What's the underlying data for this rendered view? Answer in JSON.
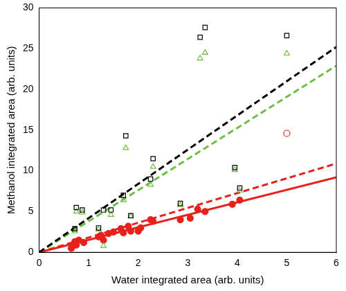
{
  "chart_data": {
    "type": "scatter",
    "x_label": "Water integrated area (arb. units)",
    "y_label": "Methanol integrated area (arb. units)",
    "xlim": [
      0,
      6
    ],
    "xticks": [
      0,
      1,
      2,
      3,
      4,
      5,
      6
    ],
    "ylim": [
      0,
      30
    ],
    "yticks": [
      0,
      5,
      10,
      15,
      20,
      25,
      30
    ],
    "grid": false,
    "series": [
      {
        "type": "line",
        "color": "#000000",
        "line_style": "dashed",
        "x": [
          0,
          6
        ],
        "values": [
          0,
          25.2
        ]
      },
      {
        "type": "line",
        "color": "#6cbf45",
        "line_style": "dashed",
        "x": [
          0,
          6
        ],
        "values": [
          0,
          22.9
        ]
      },
      {
        "type": "line",
        "color": "#e8201c",
        "line_style": "dashed",
        "x": [
          0,
          6
        ],
        "values": [
          0,
          10.9
        ]
      },
      {
        "type": "line",
        "color": "#e8201c",
        "line_style": "solid",
        "x": [
          0,
          6
        ],
        "values": [
          0,
          9.2
        ]
      },
      {
        "type": "scatter",
        "color": "#000000",
        "marker": "square_open",
        "x": [
          0.72,
          0.75,
          0.87,
          1.2,
          1.3,
          1.45,
          1.7,
          1.75,
          1.85,
          2.25,
          2.3,
          2.85,
          3.25,
          3.35,
          3.95,
          4.05,
          5.0
        ],
        "values": [
          2.9,
          5.5,
          5.2,
          3.0,
          5.2,
          5.2,
          7.0,
          14.3,
          4.5,
          9.0,
          11.5,
          6.0,
          26.4,
          27.6,
          10.4,
          7.9,
          26.6
        ]
      },
      {
        "type": "scatter",
        "color": "#6cbf45",
        "marker": "triangle_open",
        "x": [
          0.72,
          0.75,
          0.87,
          1.2,
          1.3,
          1.45,
          1.7,
          1.75,
          1.85,
          2.25,
          2.3,
          2.85,
          3.25,
          3.35,
          3.95,
          4.05,
          5.0
        ],
        "values": [
          2.6,
          5.0,
          4.9,
          2.8,
          0.8,
          4.6,
          6.4,
          12.8,
          4.4,
          8.3,
          10.5,
          5.8,
          23.8,
          24.5,
          10.1,
          7.6,
          24.4
        ]
      },
      {
        "type": "scatter",
        "color": "#e8201c",
        "marker": "circle",
        "x": [
          0.65,
          0.68,
          0.7,
          0.72,
          0.75,
          0.8,
          0.9,
          1.2,
          1.25,
          1.3,
          1.4,
          1.5,
          1.65,
          1.7,
          1.8,
          1.85,
          2.0,
          2.05,
          2.25,
          2.3,
          2.85,
          3.05,
          3.2,
          3.35,
          3.9,
          4.05
        ],
        "values": [
          0.5,
          0.8,
          1.0,
          1.3,
          0.9,
          1.5,
          1.2,
          1.9,
          2.1,
          1.5,
          2.3,
          2.5,
          2.9,
          2.4,
          3.2,
          2.6,
          2.6,
          3.0,
          4.0,
          3.8,
          4.0,
          4.2,
          5.3,
          5.0,
          5.9,
          6.4
        ]
      },
      {
        "type": "scatter",
        "color": "#e8201c",
        "marker": "circle_open",
        "x": [
          5.0
        ],
        "values": [
          14.6
        ]
      }
    ]
  }
}
